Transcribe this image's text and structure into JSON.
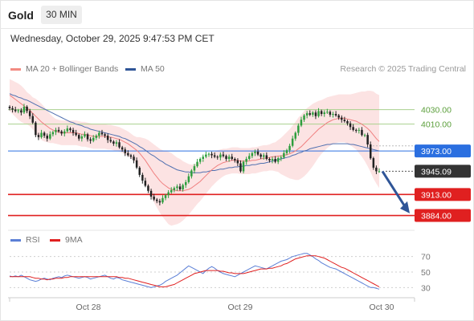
{
  "header": {
    "instrument": "Gold",
    "timeframe": "30 MIN",
    "datetime": "Wednesday, October 29, 2025 9:47:53 PM CET",
    "research": "Research © 2025 Trading Central"
  },
  "legend_top": [
    {
      "label": "MA 20 + Bollinger Bands",
      "color": "#f28b82"
    },
    {
      "label": "MA 50",
      "color": "#2f5597"
    }
  ],
  "legend_bottom": [
    {
      "label": "RSI",
      "color": "#5b7fd6"
    },
    {
      "label": "9MA",
      "color": "#e02020"
    }
  ],
  "colors": {
    "up": "#2e9e3e",
    "down": "#222222",
    "resistance": "#a9d18e",
    "pivot": "#2b6fe0",
    "support": "#e02020",
    "arrow": "#2f5597",
    "band": "#fbd9d9",
    "last": "#333333"
  },
  "chart_data": [
    {
      "type": "candlestick",
      "x_labels": [
        "Oct 28",
        "Oct 29",
        "Oct 30"
      ],
      "price_range": [
        3868,
        4076
      ],
      "levels": [
        {
          "label": "4030.00",
          "value": 4030,
          "kind": "resistance"
        },
        {
          "label": "4010.00",
          "value": 4010,
          "kind": "resistance"
        },
        {
          "label": "3973.00",
          "value": 3973,
          "kind": "pivot"
        },
        {
          "label": "3945.09",
          "value": 3945.09,
          "kind": "last"
        },
        {
          "label": "3913.00",
          "value": 3913,
          "kind": "support"
        },
        {
          "label": "3884.00",
          "value": 3884,
          "kind": "support"
        }
      ],
      "close": [
        4032,
        4030,
        4028,
        4029,
        4026,
        4034,
        4028,
        4021,
        4012,
        3995,
        3992,
        3998,
        3994,
        3990,
        3996,
        3999,
        4002,
        4000,
        3997,
        4000,
        4004,
        4002,
        3998,
        3995,
        3990,
        3993,
        3996,
        3989,
        3987,
        3991,
        3994,
        3998,
        3996,
        3994,
        3988,
        3986,
        3983,
        3985,
        3978,
        3975,
        3970,
        3967,
        3965,
        3960,
        3950,
        3940,
        3932,
        3925,
        3918,
        3910,
        3906,
        3904,
        3902,
        3908,
        3912,
        3916,
        3919,
        3922,
        3924,
        3920,
        3926,
        3930,
        3938,
        3946,
        3952,
        3958,
        3962,
        3965,
        3968,
        3969,
        3967,
        3965,
        3964,
        3968,
        3966,
        3962,
        3965,
        3962,
        3960,
        3956,
        3945,
        3958,
        3962,
        3966,
        3970,
        3972,
        3968,
        3965,
        3967,
        3962,
        3960,
        3962,
        3958,
        3963,
        3964,
        3970,
        3974,
        3980,
        3990,
        3998,
        4008,
        4016,
        4022,
        4025,
        4023,
        4026,
        4021,
        4028,
        4024,
        4026,
        4027,
        4023,
        4024,
        4022,
        4019,
        4016,
        4014,
        4011,
        4006,
        4002,
        4001,
        4002,
        3995,
        3995,
        3982,
        3963,
        3950,
        3945,
        3945
      ],
      "ma20": [
        4050,
        4047,
        4044,
        4041,
        4038,
        4035,
        4032,
        4029,
        4025,
        4021,
        4017,
        4013,
        4010,
        4007,
        4004,
        4002,
        4000,
        3999,
        3998,
        3998,
        3998,
        3998,
        3998,
        3998,
        3997,
        3996,
        3996,
        3995,
        3994,
        3993,
        3993,
        3993,
        3993,
        3993,
        3992,
        3992,
        3991,
        3990,
        3989,
        3987,
        3985,
        3983,
        3980,
        3977,
        3974,
        3970,
        3965,
        3960,
        3954,
        3948,
        3942,
        3937,
        3932,
        3928,
        3925,
        3922,
        3920,
        3919,
        3918,
        3918,
        3918,
        3919,
        3920,
        3922,
        3925,
        3928,
        3931,
        3935,
        3939,
        3943,
        3947,
        3950,
        3953,
        3955,
        3957,
        3958,
        3959,
        3960,
        3960,
        3960,
        3959,
        3959,
        3959,
        3959,
        3960,
        3960,
        3961,
        3962,
        3963,
        3963,
        3964,
        3965,
        3965,
        3966,
        3966,
        3967,
        3968,
        3969,
        3971,
        3973,
        3976,
        3979,
        3983,
        3987,
        3991,
        3995,
        3999,
        4003,
        4006,
        4009,
        4012,
        4014,
        4016,
        4017,
        4018,
        4018,
        4018,
        4017,
        4016,
        4015,
        4014,
        4012,
        4010,
        4007,
        4004,
        4000,
        3995,
        3990,
        3986
      ],
      "ma50": [
        4052,
        4050,
        4049,
        4047,
        4046,
        4044,
        4043,
        4041,
        4039,
        4037,
        4035,
        4033,
        4031,
        4029,
        4027,
        4025,
        4023,
        4021,
        4019,
        4017,
        4015,
        4013,
        4012,
        4010,
        4009,
        4008,
        4006,
        4005,
        4003,
        4002,
        4001,
        4000,
        3999,
        3998,
        3997,
        3996,
        3995,
        3994,
        3993,
        3991,
        3990,
        3988,
        3986,
        3984,
        3982,
        3979,
        3977,
        3974,
        3971,
        3968,
        3966,
        3963,
        3960,
        3958,
        3955,
        3953,
        3951,
        3949,
        3947,
        3946,
        3945,
        3944,
        3944,
        3943,
        3943,
        3943,
        3943,
        3944,
        3944,
        3945,
        3946,
        3946,
        3947,
        3948,
        3948,
        3949,
        3950,
        3950,
        3951,
        3951,
        3952,
        3952,
        3953,
        3953,
        3954,
        3954,
        3955,
        3956,
        3956,
        3957,
        3958,
        3959,
        3960,
        3961,
        3962,
        3963,
        3964,
        3965,
        3967,
        3968,
        3970,
        3971,
        3973,
        3974,
        3976,
        3977,
        3978,
        3979,
        3980,
        3981,
        3982,
        3982,
        3983,
        3983,
        3983,
        3983,
        3983,
        3983,
        3982,
        3982,
        3981,
        3980,
        3979,
        3978,
        3977,
        3976,
        3975,
        3974,
        3973
      ],
      "bb_width": [
        22,
        23,
        24,
        25,
        25,
        24,
        22,
        22,
        22,
        24,
        25,
        25,
        24,
        22,
        20,
        18,
        17,
        17,
        17,
        17,
        17,
        17,
        17,
        17,
        17,
        17,
        17,
        17,
        17,
        17,
        17,
        17,
        17,
        17,
        17,
        17,
        17,
        17,
        17,
        17,
        17,
        17,
        17,
        17,
        18,
        22,
        26,
        30,
        34,
        37,
        40,
        42,
        44,
        46,
        48,
        50,
        50,
        48,
        46,
        44,
        41,
        38,
        35,
        32,
        30,
        28,
        27,
        26,
        25,
        24,
        23,
        22,
        21,
        20,
        19,
        18,
        18,
        18,
        18,
        18,
        18,
        18,
        18,
        18,
        18,
        18,
        18,
        18,
        18,
        18,
        18,
        19,
        20,
        22,
        25,
        28,
        31,
        34,
        37,
        40,
        43,
        44,
        45,
        45,
        44,
        43,
        41,
        39,
        37,
        36,
        35,
        34,
        33,
        33,
        33,
        33,
        33,
        34,
        35,
        37,
        39,
        42,
        45,
        48,
        52,
        56,
        60,
        62,
        64
      ],
      "rsi_range": [
        20,
        80
      ],
      "rsi_ticks": [
        70,
        50,
        30
      ],
      "rsi": [
        45,
        44,
        45,
        44,
        46,
        44,
        42,
        40,
        39,
        38,
        39,
        41,
        42,
        41,
        40,
        42,
        43,
        44,
        43,
        45,
        46,
        45,
        44,
        43,
        42,
        43,
        44,
        43,
        41,
        42,
        43,
        44,
        45,
        46,
        44,
        42,
        41,
        43,
        42,
        40,
        39,
        38,
        37,
        36,
        35,
        34,
        33,
        32,
        31,
        30,
        31,
        32,
        33,
        35,
        38,
        40,
        42,
        44,
        46,
        49,
        52,
        55,
        58,
        56,
        54,
        52,
        50,
        48,
        52,
        55,
        57,
        55,
        52,
        50,
        48,
        47,
        46,
        45,
        44,
        46,
        48,
        50,
        52,
        54,
        56,
        58,
        57,
        56,
        55,
        54,
        56,
        58,
        60,
        62,
        64,
        65,
        66,
        68,
        70,
        71,
        72,
        73,
        74,
        74,
        72,
        70,
        67,
        65,
        62,
        60,
        58,
        56,
        55,
        54,
        52,
        50,
        48,
        46,
        44,
        42,
        40,
        38,
        36,
        34,
        32,
        30,
        30,
        29,
        28
      ],
      "rsi_ma": [
        44,
        44,
        44,
        44,
        44,
        44,
        44,
        44,
        43,
        42,
        42,
        41,
        41,
        40,
        41,
        41,
        42,
        42,
        42,
        43,
        43,
        44,
        44,
        44,
        44,
        44,
        44,
        44,
        44,
        44,
        44,
        44,
        44,
        44,
        44,
        44,
        44,
        44,
        43,
        43,
        42,
        42,
        41,
        40,
        39,
        38,
        37,
        36,
        35,
        34,
        33,
        32,
        31,
        31,
        31,
        32,
        33,
        34,
        36,
        38,
        40,
        42,
        44,
        46,
        48,
        49,
        50,
        51,
        52,
        52,
        52,
        52,
        52,
        51,
        51,
        50,
        49,
        49,
        48,
        48,
        48,
        48,
        49,
        50,
        51,
        52,
        53,
        54,
        54,
        54,
        55,
        55,
        56,
        57,
        58,
        60,
        61,
        63,
        65,
        67,
        68,
        69,
        70,
        71,
        71,
        71,
        71,
        70,
        69,
        68,
        66,
        64,
        62,
        60,
        58,
        56,
        55,
        53,
        51,
        49,
        47,
        45,
        43,
        41,
        39,
        37,
        35,
        33,
        31
      ]
    }
  ]
}
